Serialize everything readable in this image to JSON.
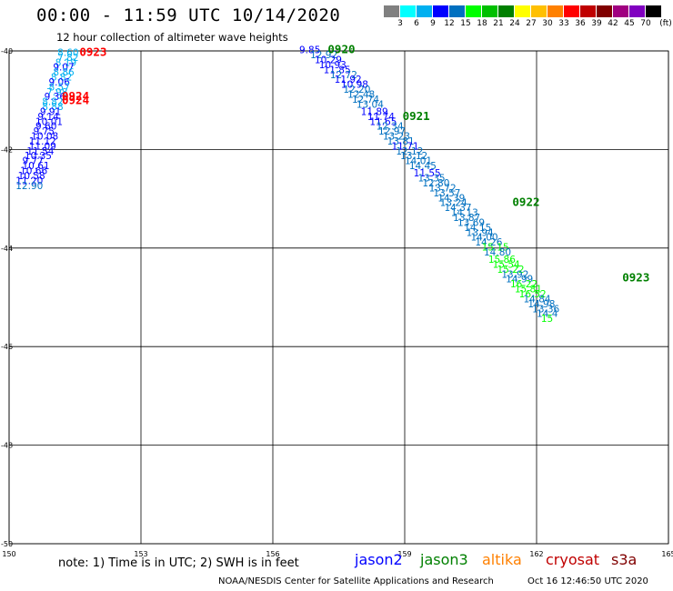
{
  "header": {
    "title": "00:00 - 11:59 UTC 10/14/2020",
    "subtitle": "12 hour collection of altimeter wave heights"
  },
  "colorbar": {
    "unit": "(ft)",
    "colors": [
      "#808080",
      "#00ffff",
      "#00b0f0",
      "#0000ff",
      "#0070c0",
      "#00ff00",
      "#00c000",
      "#008000",
      "#ffff00",
      "#ffc000",
      "#ff8000",
      "#ff0000",
      "#c00000",
      "#800000",
      "#a00080",
      "#8000c0",
      "#000000"
    ],
    "labels": [
      "3",
      "6",
      "9",
      "12",
      "15",
      "18",
      "21",
      "24",
      "27",
      "30",
      "33",
      "36",
      "39",
      "42",
      "45",
      "70"
    ]
  },
  "footer": {
    "note": "note: 1) Time is in UTC; 2) SWH is in feet",
    "legend": [
      {
        "name": "jason2",
        "color": "#0000ff"
      },
      {
        "name": "jason3",
        "color": "#008000"
      },
      {
        "name": "altika",
        "color": "#ff8000"
      },
      {
        "name": "cryosat",
        "color": "#c00000"
      },
      {
        "name": "s3a",
        "color": "#800000"
      }
    ],
    "credit": "NOAA/NESDIS Center for Satellite Applications and Research",
    "timestamp": "Oct 16 12:46:50 UTC 2020"
  },
  "chart_data": {
    "type": "scatter",
    "x_axis": {
      "range": [
        150,
        165
      ],
      "ticks": [
        "150",
        "153",
        "156",
        "159",
        "162",
        "165"
      ]
    },
    "y_axis": {
      "range": [
        -50,
        -40
      ],
      "ticks": [
        "-40",
        "-42",
        "-44",
        "-46",
        "-48",
        "-50"
      ]
    },
    "grid": true,
    "time_labels": [
      {
        "text": "0923",
        "x": 151.6,
        "y": -40.1,
        "color": "#ff0000"
      },
      {
        "text": "0924",
        "x": 151.2,
        "y": -41.0,
        "color": "#ff0000"
      },
      {
        "text": "0924",
        "x": 151.2,
        "y": -41.08,
        "color": "#ff0000"
      },
      {
        "text": "0920",
        "x": 157.25,
        "y": -40.05,
        "color": "#008000"
      },
      {
        "text": "0921",
        "x": 158.95,
        "y": -41.4,
        "color": "#008000"
      },
      {
        "text": "0922",
        "x": 161.45,
        "y": -43.15,
        "color": "#008000"
      },
      {
        "text": "0923",
        "x": 163.95,
        "y": -44.68,
        "color": "#008000"
      }
    ],
    "series": [
      {
        "name": "jason2",
        "values": [
          {
            "x": 151.1,
            "y": -40.1,
            "swh": "8.60"
          },
          {
            "x": 151.1,
            "y": -40.2,
            "swh": "7.82"
          },
          {
            "x": 151.05,
            "y": -40.3,
            "swh": "8.19"
          },
          {
            "x": 151.0,
            "y": -40.4,
            "swh": "9.07"
          },
          {
            "x": 151.0,
            "y": -40.5,
            "swh": "8.86"
          },
          {
            "x": 150.95,
            "y": -40.6,
            "swh": "8.82"
          },
          {
            "x": 150.9,
            "y": -40.7,
            "swh": "9.06"
          },
          {
            "x": 150.9,
            "y": -40.8,
            "swh": "8.57"
          },
          {
            "x": 150.85,
            "y": -40.9,
            "swh": "7.98"
          },
          {
            "x": 150.8,
            "y": -41.0,
            "swh": "9.36"
          },
          {
            "x": 150.75,
            "y": -41.1,
            "swh": "8.82"
          },
          {
            "x": 150.75,
            "y": -41.2,
            "swh": "8.88"
          },
          {
            "x": 150.7,
            "y": -41.3,
            "swh": "9.91"
          },
          {
            "x": 150.65,
            "y": -41.4,
            "swh": "9.14"
          },
          {
            "x": 150.6,
            "y": -41.5,
            "swh": "10.01"
          },
          {
            "x": 150.6,
            "y": -41.6,
            "swh": "9.60"
          },
          {
            "x": 150.55,
            "y": -41.7,
            "swh": "9.75"
          },
          {
            "x": 150.5,
            "y": -41.8,
            "swh": "10.08"
          },
          {
            "x": 150.45,
            "y": -41.9,
            "swh": "11.12"
          },
          {
            "x": 150.45,
            "y": -42.0,
            "swh": "11.09"
          },
          {
            "x": 150.4,
            "y": -42.1,
            "swh": "11.54"
          },
          {
            "x": 150.35,
            "y": -42.2,
            "swh": "10.35"
          },
          {
            "x": 150.3,
            "y": -42.3,
            "swh": "9.77"
          },
          {
            "x": 150.3,
            "y": -42.4,
            "swh": "10.61"
          },
          {
            "x": 150.25,
            "y": -42.5,
            "swh": "10.66"
          },
          {
            "x": 150.2,
            "y": -42.6,
            "swh": "10.58"
          },
          {
            "x": 150.15,
            "y": -42.7,
            "swh": "11.20"
          },
          {
            "x": 150.15,
            "y": -42.8,
            "swh": "12.90"
          },
          {
            "x": 156.6,
            "y": -40.05,
            "swh": "9.85"
          },
          {
            "x": 156.85,
            "y": -40.15,
            "swh": "12.92"
          },
          {
            "x": 156.95,
            "y": -40.25,
            "swh": "10.29"
          },
          {
            "x": 157.05,
            "y": -40.35,
            "swh": "10.93"
          },
          {
            "x": 157.15,
            "y": -40.45,
            "swh": "11.85"
          },
          {
            "x": 157.3,
            "y": -40.55,
            "swh": "12.72"
          },
          {
            "x": 157.4,
            "y": -40.65,
            "swh": "11.92"
          },
          {
            "x": 157.55,
            "y": -40.75,
            "swh": "10.98"
          },
          {
            "x": 157.6,
            "y": -40.85,
            "swh": "12.20"
          },
          {
            "x": 157.7,
            "y": -40.95,
            "swh": "12.48"
          },
          {
            "x": 157.8,
            "y": -41.05,
            "swh": "12.74"
          },
          {
            "x": 157.9,
            "y": -41.15,
            "swh": "13.04"
          },
          {
            "x": 158.0,
            "y": -41.3,
            "swh": "11.89"
          },
          {
            "x": 158.15,
            "y": -41.4,
            "swh": "11.74"
          },
          {
            "x": 158.2,
            "y": -41.5,
            "swh": "11.65"
          },
          {
            "x": 158.35,
            "y": -41.6,
            "swh": "12.34"
          },
          {
            "x": 158.4,
            "y": -41.7,
            "swh": "12.97"
          },
          {
            "x": 158.5,
            "y": -41.8,
            "swh": "13.23"
          },
          {
            "x": 158.6,
            "y": -41.9,
            "swh": "13.81"
          },
          {
            "x": 158.7,
            "y": -42.0,
            "swh": "11.71"
          },
          {
            "x": 158.8,
            "y": -42.1,
            "swh": "12.12"
          },
          {
            "x": 158.9,
            "y": -42.2,
            "swh": "13.12"
          },
          {
            "x": 159.0,
            "y": -42.3,
            "swh": "14.01"
          },
          {
            "x": 159.1,
            "y": -42.4,
            "swh": "14.45"
          },
          {
            "x": 159.2,
            "y": -42.55,
            "swh": "11.55"
          },
          {
            "x": 159.3,
            "y": -42.65,
            "swh": "13.35"
          },
          {
            "x": 159.4,
            "y": -42.75,
            "swh": "12.80"
          },
          {
            "x": 159.55,
            "y": -42.85,
            "swh": "13.72"
          },
          {
            "x": 159.65,
            "y": -42.95,
            "swh": "13.57"
          },
          {
            "x": 159.75,
            "y": -43.05,
            "swh": "14.39"
          },
          {
            "x": 159.8,
            "y": -43.15,
            "swh": "13.24"
          },
          {
            "x": 159.9,
            "y": -43.25,
            "swh": "14.37"
          },
          {
            "x": 160.05,
            "y": -43.35,
            "swh": "14.13"
          },
          {
            "x": 160.1,
            "y": -43.45,
            "swh": "13.87"
          },
          {
            "x": 160.2,
            "y": -43.55,
            "swh": "13.69"
          },
          {
            "x": 160.35,
            "y": -43.65,
            "swh": "14.15"
          },
          {
            "x": 160.4,
            "y": -43.75,
            "swh": "13.94"
          },
          {
            "x": 160.5,
            "y": -43.85,
            "swh": "14.00"
          },
          {
            "x": 160.6,
            "y": -43.95,
            "swh": "14.26"
          },
          {
            "x": 160.75,
            "y": -44.05,
            "swh": "15.15"
          },
          {
            "x": 160.8,
            "y": -44.15,
            "swh": "14.80"
          },
          {
            "x": 160.9,
            "y": -44.3,
            "swh": "15.86"
          },
          {
            "x": 161.0,
            "y": -44.4,
            "swh": "15.54"
          },
          {
            "x": 161.1,
            "y": -44.5,
            "swh": "15.22"
          },
          {
            "x": 161.2,
            "y": -44.6,
            "swh": "13.92"
          },
          {
            "x": 161.3,
            "y": -44.7,
            "swh": "14.99"
          },
          {
            "x": 161.4,
            "y": -44.8,
            "swh": "16.22"
          },
          {
            "x": 161.5,
            "y": -44.9,
            "swh": "15.81"
          },
          {
            "x": 161.6,
            "y": -45.0,
            "swh": "16.52"
          },
          {
            "x": 161.7,
            "y": -45.1,
            "swh": "14.84"
          },
          {
            "x": 161.8,
            "y": -45.2,
            "swh": "14.98"
          },
          {
            "x": 161.9,
            "y": -45.3,
            "swh": "13.36"
          },
          {
            "x": 162.0,
            "y": -45.4,
            "swh": "14.4"
          },
          {
            "x": 162.1,
            "y": -45.5,
            "swh": "15"
          }
        ]
      }
    ]
  }
}
